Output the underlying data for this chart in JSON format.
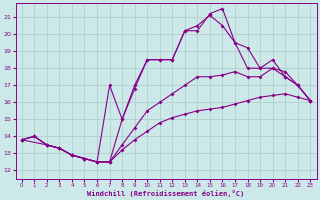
{
  "xlabel": "Windchill (Refroidissement éolien,°C)",
  "bg_color": "#cce8e8",
  "line_color": "#880088",
  "grid_color": "#aacccc",
  "xlim": [
    -0.5,
    23.5
  ],
  "ylim": [
    11.5,
    21.8
  ],
  "xticks": [
    0,
    1,
    2,
    3,
    4,
    5,
    6,
    7,
    8,
    9,
    10,
    11,
    12,
    13,
    14,
    15,
    16,
    17,
    18,
    19,
    20,
    21,
    22,
    23
  ],
  "yticks": [
    12,
    13,
    14,
    15,
    16,
    17,
    18,
    19,
    20,
    21
  ],
  "line1_x": [
    0,
    1,
    2,
    3,
    4,
    5,
    6,
    7,
    8,
    9,
    10,
    11,
    12,
    13,
    14,
    15,
    16,
    17,
    18,
    19,
    20,
    21,
    22,
    23
  ],
  "line1_y": [
    13.8,
    14.0,
    13.5,
    13.3,
    12.9,
    12.7,
    12.5,
    12.5,
    13.2,
    13.8,
    14.3,
    14.8,
    15.1,
    15.3,
    15.5,
    15.6,
    15.7,
    15.9,
    16.1,
    16.3,
    16.4,
    16.5,
    16.3,
    16.1
  ],
  "line2_x": [
    0,
    1,
    2,
    3,
    4,
    5,
    6,
    7,
    8,
    9,
    10,
    11,
    12,
    13,
    14,
    15,
    16,
    17,
    18,
    19,
    20,
    21,
    22,
    23
  ],
  "line2_y": [
    13.8,
    14.0,
    13.5,
    13.3,
    12.9,
    12.7,
    12.5,
    12.5,
    13.5,
    14.5,
    15.5,
    16.0,
    16.5,
    17.0,
    17.5,
    17.5,
    17.6,
    17.8,
    17.5,
    17.5,
    18.0,
    17.8,
    17.0,
    16.1
  ],
  "line3_x": [
    0,
    1,
    2,
    3,
    4,
    5,
    6,
    7,
    8,
    9,
    10,
    11,
    12,
    13,
    14,
    15,
    16,
    17,
    18,
    19,
    20,
    21,
    22,
    23
  ],
  "line3_y": [
    13.8,
    14.0,
    13.5,
    13.3,
    12.9,
    12.7,
    12.5,
    12.5,
    15.0,
    16.8,
    18.5,
    18.5,
    18.5,
    20.2,
    20.2,
    21.2,
    21.5,
    19.5,
    19.2,
    18.0,
    18.0,
    17.5,
    17.0,
    16.1
  ],
  "line4_x": [
    0,
    2,
    3,
    4,
    5,
    6,
    7,
    8,
    9,
    10,
    11,
    12,
    13,
    14,
    15,
    16,
    17,
    18,
    19,
    20,
    21,
    22,
    23
  ],
  "line4_y": [
    13.8,
    13.5,
    13.3,
    12.9,
    12.7,
    12.5,
    17.0,
    15.0,
    17.0,
    18.5,
    18.5,
    18.5,
    20.2,
    20.5,
    21.1,
    20.5,
    19.5,
    18.0,
    18.0,
    18.5,
    17.5,
    17.0,
    16.1
  ]
}
